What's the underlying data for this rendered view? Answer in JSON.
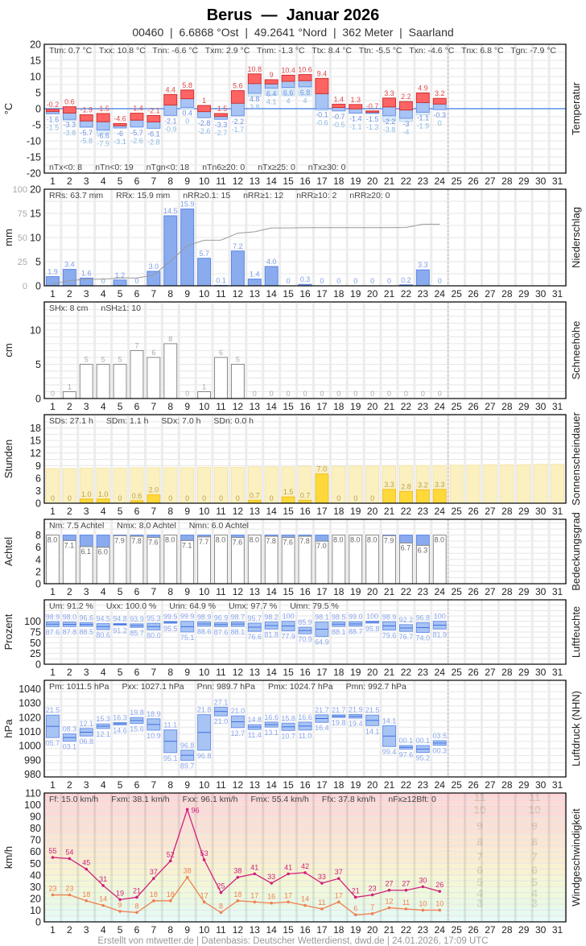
{
  "header": {
    "title": "Berus  —  Januar 2026",
    "subtitle": "00460  |  6.6868 °Ost  |  49.2641 °Nord  |  362 Meter  |  Saarland"
  },
  "footer": "Erstellt von mtwetter.de | Datenbasis: Deutscher Wetterdienst, dwd.de | 24.01.2026, 17:09 UTC",
  "days": [
    "1",
    "2",
    "3",
    "4",
    "5",
    "6",
    "7",
    "8",
    "9",
    "10",
    "11",
    "12",
    "13",
    "14",
    "15",
    "16",
    "17",
    "18",
    "19",
    "20",
    "21",
    "22",
    "23",
    "24",
    "25",
    "26",
    "27",
    "28",
    "29",
    "30",
    "31"
  ],
  "colors": {
    "tmax": "#ff6464",
    "tmin": "#a8c4f4",
    "precip": "#8aacee",
    "sun": "#ffd93a",
    "sun_possible": "#fbf0c0",
    "gust": "#d0207a",
    "wind": "#f08050",
    "today_marker": "#e0b0b0"
  },
  "chart_data": [
    {
      "id": "temperature",
      "type": "bar",
      "ylabel": "°C",
      "right_title": "Temperatur",
      "ylim": [
        -20,
        20
      ],
      "yticks": [
        "20",
        "15",
        "10",
        "5",
        "0",
        "-5",
        "-10",
        "-15",
        "-20"
      ],
      "stats": [
        "Ttm: 0.7 °C",
        "Txx: 10.8 °C",
        "Tnn: -6.6 °C",
        "Txm: 2.9 °C",
        "Tnm: -1.3 °C",
        "Ttx: 8.4 °C",
        "Ttn: -5.5 °C",
        "Txn: -4.6 °C",
        "Tnx: 6.8 °C",
        "Tgn: -7.9 °C"
      ],
      "stats_bottom": [
        "nTx<0: 8",
        "nTn<0: 19",
        "nTgn<0: 18",
        "nTn6≥20: 0",
        "nTx≥25: 0",
        "nTx≥30: 0"
      ],
      "series": {
        "tmax": [
          -0.2,
          0.6,
          -1.9,
          -1.5,
          -4.6,
          -1.4,
          -2.1,
          4.4,
          5.8,
          1.0,
          -1.5,
          5.6,
          10.8,
          9.0,
          10.4,
          10.6,
          9.4,
          1.4,
          1.3,
          -0.7,
          3.3,
          2.2,
          4.9,
          3.2
        ],
        "tmin": [
          -1.6,
          -3.3,
          -5.7,
          -6.6,
          -6.0,
          -5.7,
          -6.1,
          -2.1,
          0.4,
          -2.8,
          -3.3,
          -2.2,
          4.8,
          6.4,
          6.6,
          6.8,
          -0.1,
          -0.7,
          -1.4,
          -1.5,
          -2.2,
          -3.0,
          -1.1,
          -0.3
        ],
        "tgmin": [
          -1.5,
          -3.8,
          -5.8,
          -7.9,
          -3.1,
          -2.6,
          -2.8,
          -0.9,
          0.0,
          -2.6,
          -2.7,
          -1.7,
          3.8,
          4.1,
          4.0,
          4.0,
          -0.6,
          -0.5,
          -1.1,
          -1.3,
          -3.8,
          -4.0,
          -1.9,
          0.0
        ]
      }
    },
    {
      "id": "precipitation",
      "type": "bar",
      "ylabel": "mm",
      "right_title": "Niederschlag",
      "ylim": [
        0,
        20
      ],
      "yticks": [
        "20",
        "15",
        "10",
        "5",
        "0"
      ],
      "ylim_secondary": [
        0,
        100
      ],
      "yticks_secondary": [
        "100",
        "75",
        "50",
        "25",
        "0"
      ],
      "stats": [
        "RRs: 63.7 mm",
        "RRx: 15.9 mm",
        "nRR≥0.1: 15",
        "nRR≥1: 12",
        "nRR≥10: 2",
        "nRR≥20: 0"
      ],
      "series": {
        "precip": [
          1.9,
          3.4,
          1.6,
          0,
          1.2,
          0,
          3.0,
          14.5,
          15.9,
          5.7,
          0.1,
          7.2,
          1.4,
          4.0,
          0,
          0.3,
          0,
          0,
          0,
          0,
          0,
          0.2,
          3.3,
          0
        ],
        "labels": [
          "1.9",
          "3.4",
          "1.6",
          "0",
          "1.2",
          "0",
          "3.0",
          "14.5",
          "15.9",
          "5.7",
          "0.1",
          "7.2",
          "1.4",
          "4.0",
          "0",
          "0.3",
          "0",
          "0",
          "0",
          "0",
          "0",
          "0.2",
          "3.3",
          "0"
        ]
      }
    },
    {
      "id": "snow",
      "type": "bar",
      "ylabel": "cm",
      "right_title": "Schneehöhe",
      "ylim": [
        0,
        14
      ],
      "yticks": [
        "10",
        "5",
        "0"
      ],
      "stats": [
        "SHx: 8 cm",
        "nSH≥1: 10"
      ],
      "series": {
        "snow": [
          0,
          1,
          5,
          5,
          5,
          7,
          6,
          8,
          0,
          1,
          6,
          5,
          0,
          0,
          0,
          0,
          0,
          0,
          0,
          0,
          0,
          0,
          0,
          0
        ]
      }
    },
    {
      "id": "sunshine",
      "type": "bar",
      "ylabel": "Stunden",
      "right_title": "Sonnenscheindauer",
      "ylim": [
        0,
        21
      ],
      "yticks": [
        "18",
        "15",
        "12",
        "9",
        "6",
        "3",
        "0"
      ],
      "stats": [
        "SDs: 27.1 h",
        "SDm: 1.1 h",
        "SDx: 7.0 h",
        "SDn: 0.0 h"
      ],
      "series": {
        "sun": [
          0,
          0,
          1.0,
          1.0,
          0,
          0.6,
          2.0,
          0,
          0,
          0,
          0,
          0,
          0.7,
          0,
          1.5,
          0.7,
          7.0,
          0,
          0,
          0,
          3.3,
          2.8,
          3.2,
          3.3
        ],
        "labels": [
          "0",
          "0",
          "1.0",
          "1.0",
          "0",
          "0.6",
          "2.0",
          "0",
          "0",
          "0",
          "0",
          "0",
          "0.7",
          "0",
          "1.5",
          "0.7",
          "7.0",
          "0",
          "0",
          "0",
          "3.3",
          "2.8",
          "3.2",
          "3.3"
        ],
        "possible": [
          8.3,
          8.3,
          8.4,
          8.4,
          8.4,
          8.5,
          8.5,
          8.5,
          8.5,
          8.6,
          8.6,
          8.6,
          8.7,
          8.7,
          8.7,
          8.8,
          8.8,
          8.8,
          8.9,
          8.9,
          8.9,
          9.0,
          9.0,
          9.0,
          9.1,
          9.1,
          9.2,
          9.2,
          9.2,
          9.3,
          9.3
        ]
      }
    },
    {
      "id": "cloud_cover",
      "type": "bar",
      "ylabel": "Achtel",
      "right_title": "Bedeckungsgrad",
      "ylim": [
        0,
        10
      ],
      "yticks": [
        "8",
        "6",
        "4",
        "2",
        "0"
      ],
      "stats": [
        "Nm: 7.5 Achtel",
        "Nmx: 8.0 Achtel",
        "Nmn: 6.0 Achtel"
      ],
      "series": {
        "cloud": [
          8.0,
          7.1,
          6.1,
          6.0,
          7.9,
          7.8,
          7.6,
          8.0,
          7.1,
          7.7,
          8.0,
          7.6,
          8.0,
          7.8,
          7.6,
          7.8,
          7.0,
          8.0,
          8.0,
          8.0,
          7.9,
          6.7,
          6.3,
          8.0
        ],
        "labels": [
          "8.0",
          "7.1",
          "6.1",
          "6.0",
          "7.9",
          "7.8",
          "7.6",
          "8.0",
          "7.1",
          "7.7",
          "8.0",
          "7.6",
          "8.0",
          "7.8",
          "7.6",
          "7.8",
          "7.0",
          "8.0",
          "8.0",
          "8.0",
          "7.9",
          "6.7",
          "6.3",
          "8.0"
        ]
      }
    },
    {
      "id": "humidity",
      "type": "bar",
      "ylabel": "Prozent",
      "right_title": "Luftfeuchte",
      "ylim": [
        0,
        125
      ],
      "yticks": [
        "100",
        "75",
        "50",
        "25",
        "0"
      ],
      "stats": [
        "Um: 91.2 %",
        "Uxx: 100.0 %",
        "Unn: 64.9 %",
        "Umx: 97.7 %",
        "Umn: 79.5 %"
      ],
      "series": {
        "max": [
          98.9,
          98.0,
          96.6,
          94.5,
          94.8,
          93.9,
          95.3,
          99.5,
          99.9,
          98.9,
          96.9,
          98.7,
          95.7,
          98.2,
          100,
          85.9,
          98.1,
          98.5,
          99.0,
          100,
          98.9,
          92.2,
          96.8,
          100
        ],
        "min": [
          87.6,
          87.8,
          88.5,
          80.6,
          91.2,
          85.7,
          80.0,
          95.5,
          75.1,
          88.6,
          87.6,
          88.1,
          76.6,
          81.8,
          77.9,
          70.9,
          64.9,
          88.1,
          88.7,
          95.8,
          79.6,
          76.7,
          74.0,
          81.9
        ]
      }
    },
    {
      "id": "pressure",
      "type": "bar",
      "ylabel": "hPa",
      "right_title": "Luftdruck (NHN)",
      "ylim": [
        980,
        1040
      ],
      "yticks": [
        "1040",
        "1030",
        "1020",
        "1010",
        "1000",
        "990",
        "980"
      ],
      "stats": [
        "Pm: 1011.5 hPa",
        "Pxx: 1027.1 hPa",
        "Pnn: 989.7 hPa",
        "Pmx: 1024.7 hPa",
        "Pmn: 992.7 hPa"
      ],
      "series": {
        "max": [
          1021.5,
          1008.3,
          1012.1,
          1015.3,
          1016.3,
          1019.8,
          1018.9,
          1011.1,
          996.8,
          1021.8,
          1027.1,
          1021.0,
          1014.8,
          1016.6,
          1015.8,
          1016.6,
          1021.7,
          1021.7,
          1021.9,
          1021.5,
          1014.1,
          1000.1,
          1000.1,
          1003.5
        ],
        "min": [
          1005.7,
          1003.1,
          1006.8,
          1012.1,
          1014.6,
          1015.6,
          1010.9,
          995.1,
          989.7,
          996.8,
          1021.0,
          1012.7,
          1011.4,
          1013.1,
          1010.7,
          1011.0,
          1016.4,
          1019.8,
          1019.4,
          1014.1,
          999.4,
          997.6,
          995.2,
          1000.3
        ]
      }
    },
    {
      "id": "wind",
      "type": "line",
      "ylabel": "km/h",
      "right_title": "Windgeschwindigkeit",
      "ylim": [
        0,
        110
      ],
      "yticks": [
        "110",
        "100",
        "90",
        "80",
        "70",
        "60",
        "50",
        "40",
        "30",
        "20",
        "10",
        "0"
      ],
      "stats": [
        "Ff: 15.0 km/h",
        "Fxm: 38.1 km/h",
        "Fxx: 96.1 km/h",
        "Fmx: 55.4 km/h",
        "Ffx: 37.8 km/h",
        "nFx≥12Bft: 0"
      ],
      "beaufort_labels": [
        "3",
        "4",
        "5",
        "6",
        "7",
        "8",
        "9",
        "10",
        "11"
      ],
      "series": {
        "gust": [
          55,
          54,
          45,
          31,
          19,
          21,
          37,
          52,
          96,
          53,
          25,
          38,
          41,
          33,
          41,
          42,
          33,
          37,
          21,
          23,
          27,
          27,
          30,
          26
        ],
        "mean_max": [
          23,
          23,
          18,
          14,
          9,
          8,
          18,
          18,
          38,
          17,
          8,
          18,
          17,
          16,
          17,
          14,
          11,
          17,
          6,
          7,
          12,
          11,
          10,
          10
        ]
      }
    }
  ]
}
